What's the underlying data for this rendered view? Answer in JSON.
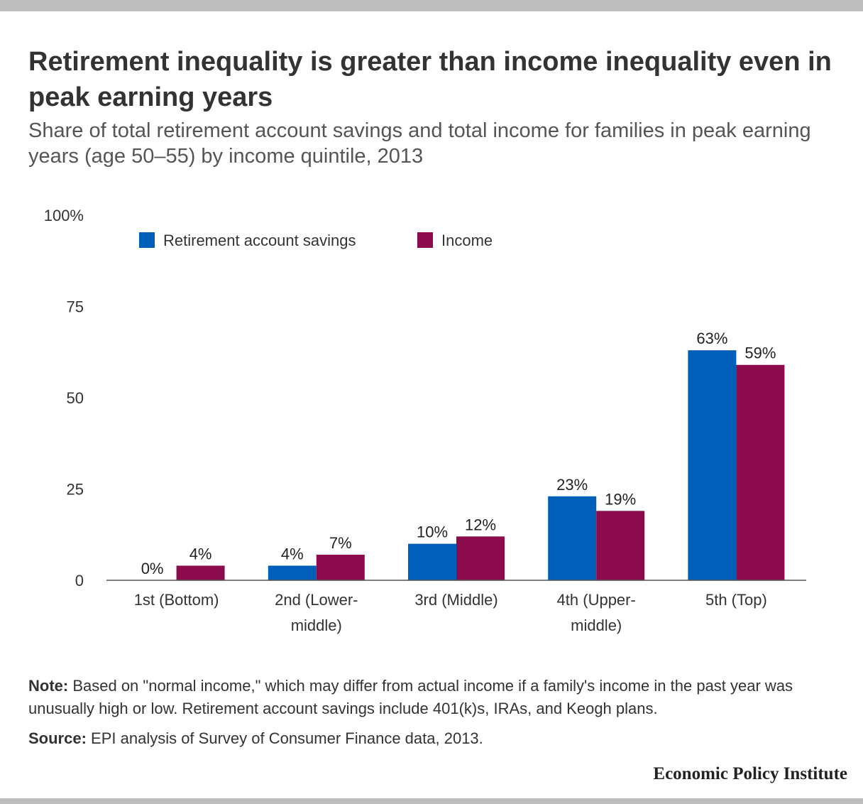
{
  "header": {
    "title": "Retirement inequality is greater than income inequality even in peak earning years",
    "subtitle": "Share of total retirement account savings and total income for families in peak earning years (age 50–55) by income quintile, 2013"
  },
  "chart_data": {
    "type": "bar",
    "categories": [
      [
        "1st (Bottom)"
      ],
      [
        "2nd (Lower-",
        "middle)"
      ],
      [
        "3rd (Middle)"
      ],
      [
        "4th (Upper-",
        "middle)"
      ],
      [
        "5th (Top)"
      ]
    ],
    "series": [
      {
        "name": "Retirement account savings",
        "color": "#005fb8",
        "values": [
          0,
          4,
          10,
          23,
          63
        ],
        "labels": [
          "0%",
          "4%",
          "10%",
          "23%",
          "63%"
        ]
      },
      {
        "name": "Income",
        "color": "#8b0b4d",
        "values": [
          4,
          7,
          12,
          19,
          59
        ],
        "labels": [
          "4%",
          "7%",
          "12%",
          "19%",
          "59%"
        ]
      }
    ],
    "yticks": [
      {
        "value": 0,
        "label": "0"
      },
      {
        "value": 25,
        "label": "25"
      },
      {
        "value": 50,
        "label": "50"
      },
      {
        "value": 75,
        "label": "75"
      },
      {
        "value": 100,
        "label": "100%"
      }
    ],
    "ylim": [
      0,
      100
    ],
    "grid": false,
    "legend_position": "top-left"
  },
  "notes": {
    "note_label": "Note:",
    "note_text": " Based on \"normal income,\" which may differ from actual income if a family's income in the past year was unusually high or low. Retirement account savings include 401(k)s, IRAs, and Keogh plans.",
    "source_label": "Source:",
    "source_text": " EPI analysis of Survey of Consumer Finance data, 2013."
  },
  "footer": {
    "brand": "Economic Policy Institute"
  }
}
